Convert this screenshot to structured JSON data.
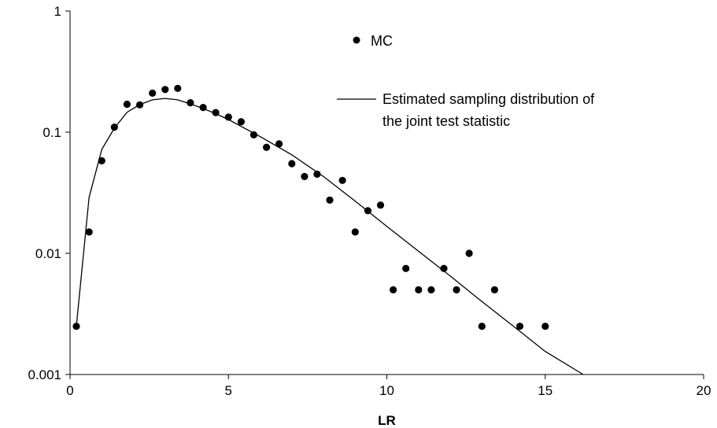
{
  "chart_data": {
    "type": "scatter",
    "title": "",
    "xlabel": "LR",
    "ylabel": "",
    "xlim": [
      0,
      20
    ],
    "ylim": [
      0.001,
      1
    ],
    "yscale": "log",
    "grid": false,
    "legend_position": "top-right",
    "x_ticks": [
      0,
      5,
      10,
      15,
      20
    ],
    "x_tick_labels": [
      "0",
      "5",
      "10",
      "15",
      "20"
    ],
    "y_ticks": [
      0.001,
      0.01,
      0.1,
      1
    ],
    "y_tick_labels": [
      "0.001",
      "0.01",
      "0.1",
      "1"
    ],
    "series": [
      {
        "name": "MC",
        "kind": "markers",
        "color": "#000000",
        "x": [
          0.2,
          0.6,
          1.0,
          1.4,
          1.8,
          2.2,
          2.6,
          3.0,
          3.4,
          3.8,
          4.2,
          4.6,
          5.0,
          5.4,
          5.8,
          6.2,
          6.6,
          7.0,
          7.4,
          7.8,
          8.2,
          8.6,
          9.0,
          9.4,
          9.8,
          10.2,
          10.6,
          11.0,
          11.4,
          11.8,
          12.2,
          12.6,
          13.0,
          13.4,
          14.2,
          15.0
        ],
        "y": [
          0.0025,
          0.015,
          0.058,
          0.11,
          0.17,
          0.168,
          0.21,
          0.225,
          0.23,
          0.175,
          0.16,
          0.145,
          0.133,
          0.122,
          0.095,
          0.075,
          0.08,
          0.055,
          0.043,
          0.045,
          0.0275,
          0.04,
          0.015,
          0.0225,
          0.025,
          0.005,
          0.0075,
          0.005,
          0.005,
          0.0075,
          0.005,
          0.01,
          0.0025,
          0.005,
          0.0025,
          0.0025
        ]
      },
      {
        "name": "Estimated sampling distribution of the joint test statistic",
        "kind": "line",
        "color": "#000000",
        "x": [
          0.2,
          0.6,
          1.0,
          1.4,
          1.8,
          2.2,
          2.6,
          3.0,
          3.4,
          3.8,
          4.2,
          4.6,
          5.0,
          6.0,
          7.0,
          8.0,
          9.0,
          10.0,
          11.0,
          12.0,
          13.0,
          14.0,
          15.0,
          16.2
        ],
        "y": [
          0.0025,
          0.029,
          0.072,
          0.108,
          0.146,
          0.169,
          0.185,
          0.19,
          0.185,
          0.171,
          0.157,
          0.142,
          0.127,
          0.092,
          0.065,
          0.043,
          0.027,
          0.0167,
          0.0104,
          0.0065,
          0.004,
          0.0025,
          0.00155,
          0.001
        ]
      }
    ]
  }
}
